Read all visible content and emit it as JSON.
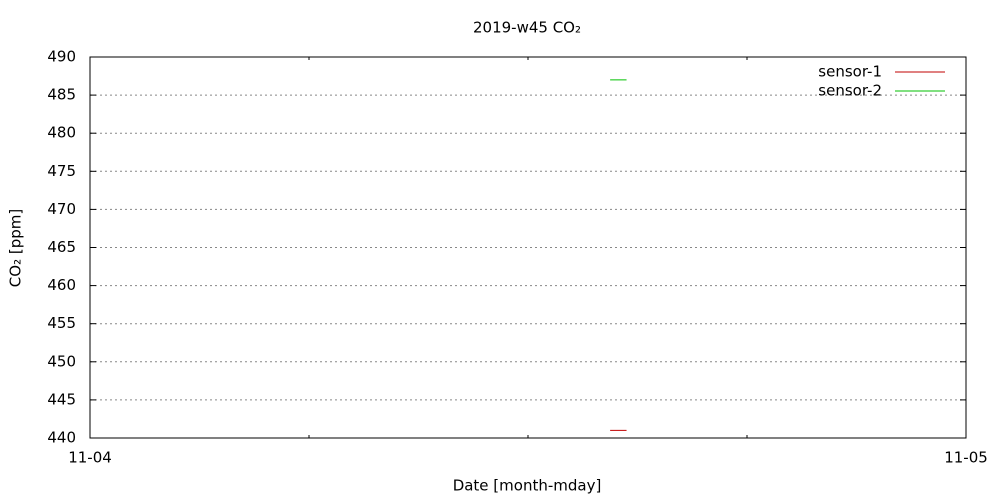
{
  "chart_data": {
    "type": "line",
    "title": "2019-w45 CO₂",
    "x_label": "Date [month-mday]",
    "y_label": "CO₂ [ppm]",
    "x": [
      14.25,
      14.7
    ],
    "series": [
      {
        "name": "sensor-1",
        "color": "#c00000",
        "values": [
          441,
          441
        ]
      },
      {
        "name": "sensor-2",
        "color": "#00c000",
        "values": [
          487,
          487
        ]
      }
    ],
    "xlim": [
      {
        "value": 0,
        "label": "11-04"
      },
      {
        "value": 24,
        "label": "11-05"
      }
    ],
    "xticks": [
      {
        "value": 0,
        "label": "11-04"
      },
      {
        "value": 24,
        "label": "11-05"
      }
    ],
    "xminor_ticks": [
      6,
      12,
      18
    ],
    "ylim": [
      440,
      490
    ],
    "yticks": [
      440,
      445,
      450,
      455,
      460,
      465,
      470,
      475,
      480,
      485,
      490
    ],
    "grid": true,
    "legend": "top-right"
  }
}
